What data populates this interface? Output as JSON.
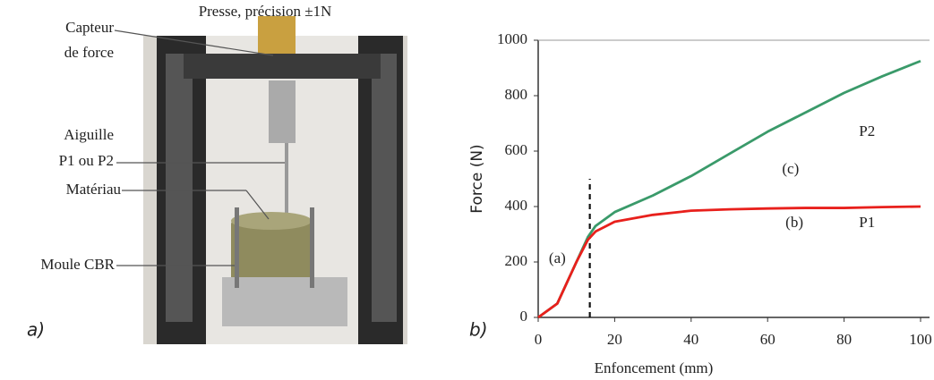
{
  "photo": {
    "title": "Presse, précision ±1N",
    "labels": [
      "Capteur",
      "de force",
      "Aiguille",
      "P1 ou P2",
      "Matériau",
      "Moule CBR"
    ],
    "panel": "a)"
  },
  "chart_data": {
    "type": "line",
    "panel": "b)",
    "xlabel": "Enfoncement (mm)",
    "ylabel": "Force (N)",
    "x": [
      0,
      5,
      10,
      13,
      15,
      20,
      30,
      40,
      50,
      60,
      70,
      80,
      90,
      100
    ],
    "series": [
      {
        "name": "P2",
        "color": "#3a9a6a",
        "values": [
          0,
          50,
          200,
          290,
          330,
          380,
          440,
          510,
          590,
          670,
          740,
          810,
          870,
          925
        ]
      },
      {
        "name": "P1",
        "color": "#e8201c",
        "values": [
          0,
          50,
          200,
          280,
          310,
          345,
          370,
          385,
          390,
          393,
          395,
          395,
          398,
          400
        ]
      }
    ],
    "xlim": [
      0,
      100
    ],
    "ylim": [
      0,
      1000
    ],
    "xticks": [
      0,
      20,
      40,
      60,
      80,
      100
    ],
    "yticks": [
      0,
      200,
      400,
      600,
      800,
      1000
    ],
    "threshold": {
      "x": 13.5,
      "ymax": 500
    },
    "annotations": [
      {
        "text": "(a)",
        "x": 5,
        "y": 210
      },
      {
        "text": "(b)",
        "x": 67,
        "y": 339
      },
      {
        "text": "(c)",
        "x": 66,
        "y": 532
      },
      {
        "text": "P2",
        "x": 86,
        "y": 668
      },
      {
        "text": "P1",
        "x": 86,
        "y": 339
      }
    ]
  }
}
